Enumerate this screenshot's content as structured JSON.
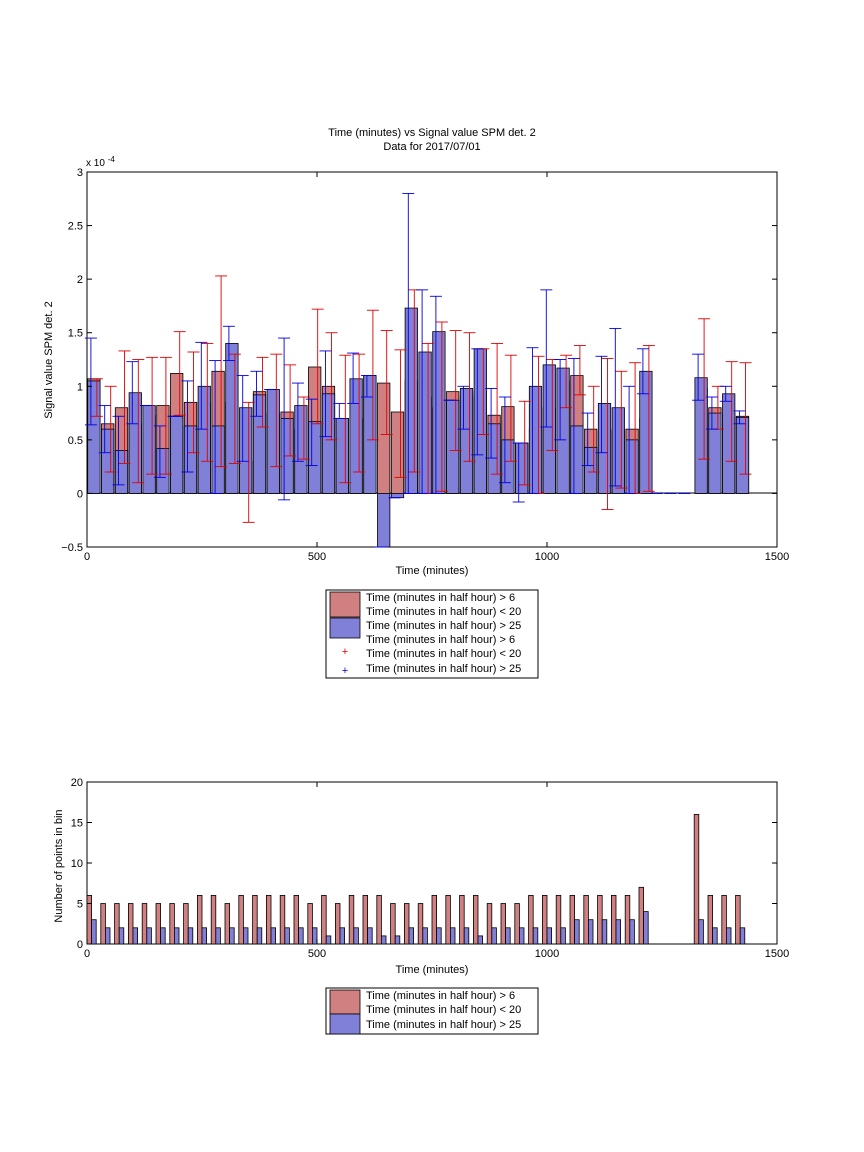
{
  "colors": {
    "red": "#d08080",
    "blue": "#8080d8",
    "red_err": "#e00000",
    "blue_err": "#0000e0"
  },
  "chart_data": [
    {
      "type": "bar",
      "title": "Time (minutes) vs Signal value SPM det. 2",
      "subtitle": "Data for 2017/07/01",
      "xlabel": "Time (minutes)",
      "ylabel": "Signal value SPM det. 2",
      "y_exponent_label": "x 10",
      "y_exponent_value": "-4",
      "xlim": [
        0,
        1500
      ],
      "ylim": [
        -0.5,
        3
      ],
      "xticks": [
        "0",
        "500",
        "1000",
        "1500"
      ],
      "yticks": [
        "−0.5",
        "0",
        "0.5",
        "1",
        "1.5",
        "2",
        "2.5",
        "3"
      ],
      "legend_position": "below",
      "legend": [
        {
          "label": "Time (minutes in half hour) > 6",
          "marker": "red-bar"
        },
        {
          "label": "Time (minutes in half hour) < 20",
          "marker": "none"
        },
        {
          "label": "Time (minutes in half hour) > 25",
          "marker": "blue-bar"
        },
        {
          "label": "Time (minutes in half hour) > 6",
          "marker": "none"
        },
        {
          "label": "Time (minutes in half hour) < 20",
          "marker": "red-plus"
        },
        {
          "label": "Time (minutes in half hour) > 25",
          "marker": "blue-plus"
        }
      ],
      "series": [
        {
          "color": "red",
          "x": [
            15,
            45,
            75,
            105,
            135,
            165,
            195,
            225,
            255,
            285,
            315,
            345,
            375,
            405,
            435,
            465,
            495,
            525,
            555,
            585,
            615,
            645,
            675,
            705,
            735,
            765,
            795,
            825,
            855,
            885,
            915,
            945,
            975,
            1005,
            1035,
            1065,
            1095,
            1125,
            1155,
            1185,
            1215,
            1335,
            1365,
            1395,
            1425
          ],
          "values": [
            1.07,
            0.65,
            0.8,
            0.65,
            0.73,
            0.82,
            1.12,
            0.85,
            0.85,
            1.14,
            0.85,
            0.3,
            0.95,
            0.75,
            0.76,
            0.6,
            1.18,
            1.0,
            0.7,
            0.7,
            1.1,
            1.03,
            0.76,
            1.05,
            0.9,
            0.8,
            0.95,
            0.9,
            0.95,
            0.73,
            0.81,
            0.47,
            0.6,
            0.8,
            1.05,
            1.1,
            0.6,
            0.58,
            0.6,
            0.6,
            0.7,
            0.98,
            0.8,
            0.75,
            0.72
          ],
          "err_low": [
            0.72,
            0.2,
            0.28,
            0.1,
            0.18,
            0.18,
            0.73,
            0.38,
            0.3,
            0.25,
            0.28,
            -0.27,
            0.62,
            0.25,
            0.35,
            0.32,
            0.65,
            0.5,
            0.1,
            0.2,
            0.5,
            0.55,
            0.15,
            0.2,
            0.0,
            0.02,
            0.4,
            0.3,
            0.55,
            0.18,
            0.3,
            0.08,
            0.0,
            0.4,
            0.8,
            0.92,
            0.2,
            -0.15,
            0.05,
            0.0,
            0.02,
            0.32,
            0.6,
            0.3,
            0.18
          ],
          "err_high": [
            1.07,
            1.0,
            1.33,
            1.25,
            1.27,
            1.27,
            1.51,
            1.32,
            1.4,
            2.03,
            1.3,
            0.85,
            1.27,
            1.3,
            1.2,
            0.9,
            1.72,
            1.5,
            1.29,
            1.3,
            1.71,
            1.52,
            1.34,
            1.9,
            1.4,
            1.6,
            1.52,
            1.5,
            1.35,
            1.4,
            1.29,
            0.86,
            1.28,
            1.25,
            1.29,
            1.38,
            1.0,
            1.26,
            1.14,
            1.22,
            1.38,
            1.63,
            1.0,
            1.23,
            1.22
          ]
        },
        {
          "color": "blue",
          "x": [
            15,
            45,
            75,
            105,
            135,
            165,
            195,
            225,
            255,
            285,
            315,
            345,
            375,
            405,
            435,
            465,
            495,
            525,
            555,
            585,
            615,
            645,
            675,
            705,
            735,
            765,
            795,
            825,
            855,
            885,
            915,
            945,
            975,
            1005,
            1035,
            1065,
            1095,
            1125,
            1155,
            1185,
            1215,
            1245,
            1275,
            1305,
            1335,
            1365,
            1395,
            1425
          ],
          "values": [
            1.05,
            0.6,
            0.4,
            0.94,
            0.82,
            0.42,
            0.72,
            0.63,
            1.0,
            0.63,
            1.4,
            0.8,
            0.92,
            0.97,
            0.7,
            0.82,
            0.67,
            0.93,
            0.7,
            1.07,
            1.1,
            -0.5,
            -0.04,
            1.73,
            1.32,
            1.51,
            0.87,
            0.98,
            1.35,
            0.65,
            0.5,
            0.47,
            1.0,
            1.2,
            1.17,
            0.63,
            0.43,
            0.84,
            0.8,
            0.5,
            1.14,
            0.0,
            0.0,
            0.0,
            1.08,
            0.75,
            0.93,
            0.71
          ],
          "err_low": [
            0.64,
            0.38,
            0.08,
            0.65,
            0.82,
            0.15,
            0.72,
            0.2,
            0.6,
            0.0,
            1.24,
            0.3,
            0.72,
            0.97,
            -0.06,
            0.3,
            0.26,
            0.53,
            0.7,
            0.84,
            0.9,
            -0.5,
            -0.04,
            0.0,
            0.0,
            0.0,
            0.87,
            0.6,
            0.36,
            0.33,
            0.1,
            -0.08,
            0.0,
            0.62,
            0.5,
            0.0,
            0.26,
            0.38,
            0.07,
            0.0,
            0.93,
            0.0,
            0.0,
            0.0,
            0.87,
            0.6,
            0.86,
            0.65
          ],
          "err_high": [
            1.45,
            0.82,
            0.72,
            1.23,
            0.82,
            0.63,
            0.72,
            1.05,
            1.41,
            1.24,
            1.56,
            1.1,
            1.14,
            0.97,
            1.45,
            1.03,
            0.88,
            1.33,
            0.84,
            1.31,
            1.1,
            -0.5,
            -0.04,
            2.8,
            1.9,
            1.84,
            0.87,
            1.0,
            1.35,
            0.98,
            0.9,
            0.47,
            1.36,
            1.9,
            1.25,
            1.26,
            0.75,
            1.28,
            1.54,
            1.0,
            1.35,
            0.0,
            0.0,
            0.0,
            1.3,
            0.9,
            1.0,
            0.77
          ]
        }
      ]
    },
    {
      "type": "bar",
      "title": "",
      "xlabel": "Time (minutes)",
      "ylabel": "Number of points in bin",
      "xlim": [
        0,
        1500
      ],
      "ylim": [
        0,
        20
      ],
      "xticks": [
        "0",
        "500",
        "1000",
        "1500"
      ],
      "yticks": [
        "0",
        "5",
        "10",
        "15",
        "20"
      ],
      "legend_position": "below",
      "legend": [
        {
          "label": "Time (minutes in half hour) > 6",
          "marker": "red-bar"
        },
        {
          "label": "Time (minutes in half hour) < 20",
          "marker": "none"
        },
        {
          "label": "Time (minutes in half hour) > 25",
          "marker": "blue-bar"
        }
      ],
      "series": [
        {
          "color": "red",
          "x": [
            5,
            35,
            65,
            95,
            125,
            155,
            185,
            215,
            245,
            275,
            305,
            335,
            365,
            395,
            425,
            455,
            485,
            515,
            545,
            575,
            605,
            635,
            665,
            695,
            725,
            755,
            785,
            815,
            845,
            875,
            905,
            935,
            965,
            995,
            1025,
            1055,
            1085,
            1115,
            1145,
            1175,
            1205,
            1325,
            1355,
            1385,
            1415
          ],
          "values": [
            6,
            5,
            5,
            5,
            5,
            5,
            5,
            5,
            6,
            6,
            5,
            6,
            6,
            6,
            6,
            6,
            5,
            6,
            5,
            6,
            6,
            6,
            5,
            5,
            5,
            6,
            6,
            6,
            6,
            5,
            5,
            5,
            6,
            6,
            6,
            6,
            6,
            6,
            6,
            6,
            7,
            16,
            6,
            6,
            6
          ]
        },
        {
          "color": "blue",
          "x": [
            15,
            45,
            75,
            105,
            135,
            165,
            195,
            225,
            255,
            285,
            315,
            345,
            375,
            405,
            435,
            465,
            495,
            525,
            555,
            585,
            615,
            645,
            675,
            705,
            735,
            765,
            795,
            825,
            855,
            885,
            915,
            945,
            975,
            1005,
            1035,
            1065,
            1095,
            1125,
            1155,
            1185,
            1215,
            1335,
            1365,
            1395,
            1425
          ],
          "values": [
            3,
            2,
            2,
            2,
            2,
            2,
            2,
            2,
            2,
            2,
            2,
            2,
            2,
            2,
            2,
            2,
            2,
            1,
            2,
            2,
            2,
            1,
            1,
            2,
            2,
            2,
            2,
            2,
            1,
            2,
            2,
            2,
            2,
            2,
            2,
            3,
            3,
            3,
            3,
            3,
            4,
            3,
            2,
            2,
            2
          ]
        }
      ]
    }
  ]
}
